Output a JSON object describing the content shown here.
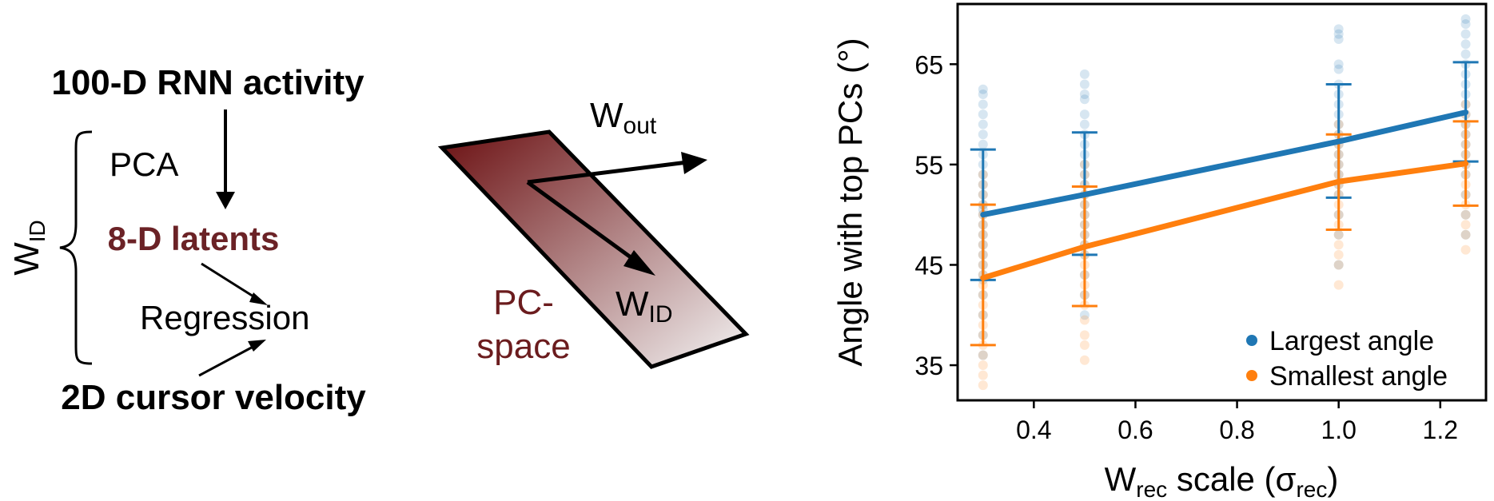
{
  "diagram": {
    "rnn_activity": "100-D RNN activity",
    "pca": "PCA",
    "latents": "8-D latents",
    "regression": "Regression",
    "cursor_velocity": "2D cursor velocity",
    "wid_base": "W",
    "wid_sub": "ID"
  },
  "pc_space": {
    "label_line1": "PC-",
    "label_line2": "space",
    "wout_base": "W",
    "wout_sub": "out",
    "wid_base": "W",
    "wid_sub": "ID"
  },
  "colors": {
    "blue": "#1f77b4",
    "orange": "#ff7f0e",
    "latents": "#6b2226",
    "pc_dark": "#6b1416"
  },
  "chart_data": {
    "type": "scatter",
    "xlabel": {
      "base": "W",
      "sub1": "rec",
      "mid": " scale (σ",
      "sub2": "rec",
      "end": ")"
    },
    "ylabel": "Angle with top PCs (°)",
    "xlim": [
      0.25,
      1.29
    ],
    "ylim": [
      31.5,
      71
    ],
    "xticks": [
      0.4,
      0.6,
      0.8,
      1.0,
      1.2
    ],
    "xtick_labels": [
      "0.4",
      "0.6",
      "0.8",
      "1.0",
      "1.2"
    ],
    "yticks": [
      35,
      45,
      55,
      65
    ],
    "ytick_labels": [
      "35",
      "45",
      "55",
      "65"
    ],
    "legend_position": "bottom-right",
    "x": [
      0.3,
      0.5,
      1.0,
      1.25
    ],
    "series": [
      {
        "name": "Largest angle",
        "color": "#1f77b4",
        "mean": [
          50.0,
          52.0,
          57.3,
          60.2
        ],
        "err_low": [
          43.5,
          46.0,
          51.7,
          55.3
        ],
        "err_high": [
          56.5,
          58.2,
          63.0,
          65.2
        ],
        "scatter": [
          [
            38,
            40,
            42,
            43.5,
            44,
            45,
            46,
            47,
            48,
            49,
            50,
            50.5,
            51,
            52,
            53,
            54,
            55,
            56,
            57,
            58,
            59,
            60,
            61,
            62,
            62.5,
            36
          ],
          [
            40,
            42,
            44,
            46,
            47,
            48,
            49,
            50,
            51,
            52,
            53,
            54,
            55,
            56,
            57,
            58,
            59,
            60,
            61.5,
            62,
            63,
            64
          ],
          [
            45,
            48,
            50,
            52,
            53,
            54,
            55,
            56,
            57,
            58,
            59,
            60,
            61,
            62,
            63,
            64.5,
            65,
            67.5,
            68,
            68.5
          ],
          [
            48,
            50,
            52,
            54,
            55,
            56,
            57,
            58,
            59,
            60,
            61,
            62,
            63,
            64,
            65,
            66,
            67,
            68,
            69,
            69.5
          ]
        ]
      },
      {
        "name": "Smallest angle",
        "color": "#ff7f0e",
        "mean": [
          43.7,
          46.8,
          53.3,
          55.1
        ],
        "err_low": [
          37.0,
          40.9,
          48.5,
          50.9
        ],
        "err_high": [
          51.0,
          52.8,
          58.0,
          59.3
        ],
        "scatter": [
          [
            33,
            34,
            35,
            36,
            37,
            38,
            39,
            40,
            41,
            42,
            43,
            44,
            45,
            46,
            47,
            48,
            49,
            50,
            51,
            52,
            53,
            54
          ],
          [
            35.5,
            37,
            38,
            39.5,
            41,
            42,
            43,
            44,
            45,
            46,
            47,
            48,
            49,
            50,
            51,
            52,
            53,
            54,
            55
          ],
          [
            43,
            45,
            46,
            47,
            48,
            49,
            50,
            51,
            52,
            53,
            54,
            55,
            56,
            57,
            58,
            59
          ],
          [
            46.5,
            48,
            49,
            50,
            51,
            52,
            53,
            54,
            55,
            56,
            57,
            58,
            59,
            60,
            61
          ]
        ]
      }
    ]
  }
}
